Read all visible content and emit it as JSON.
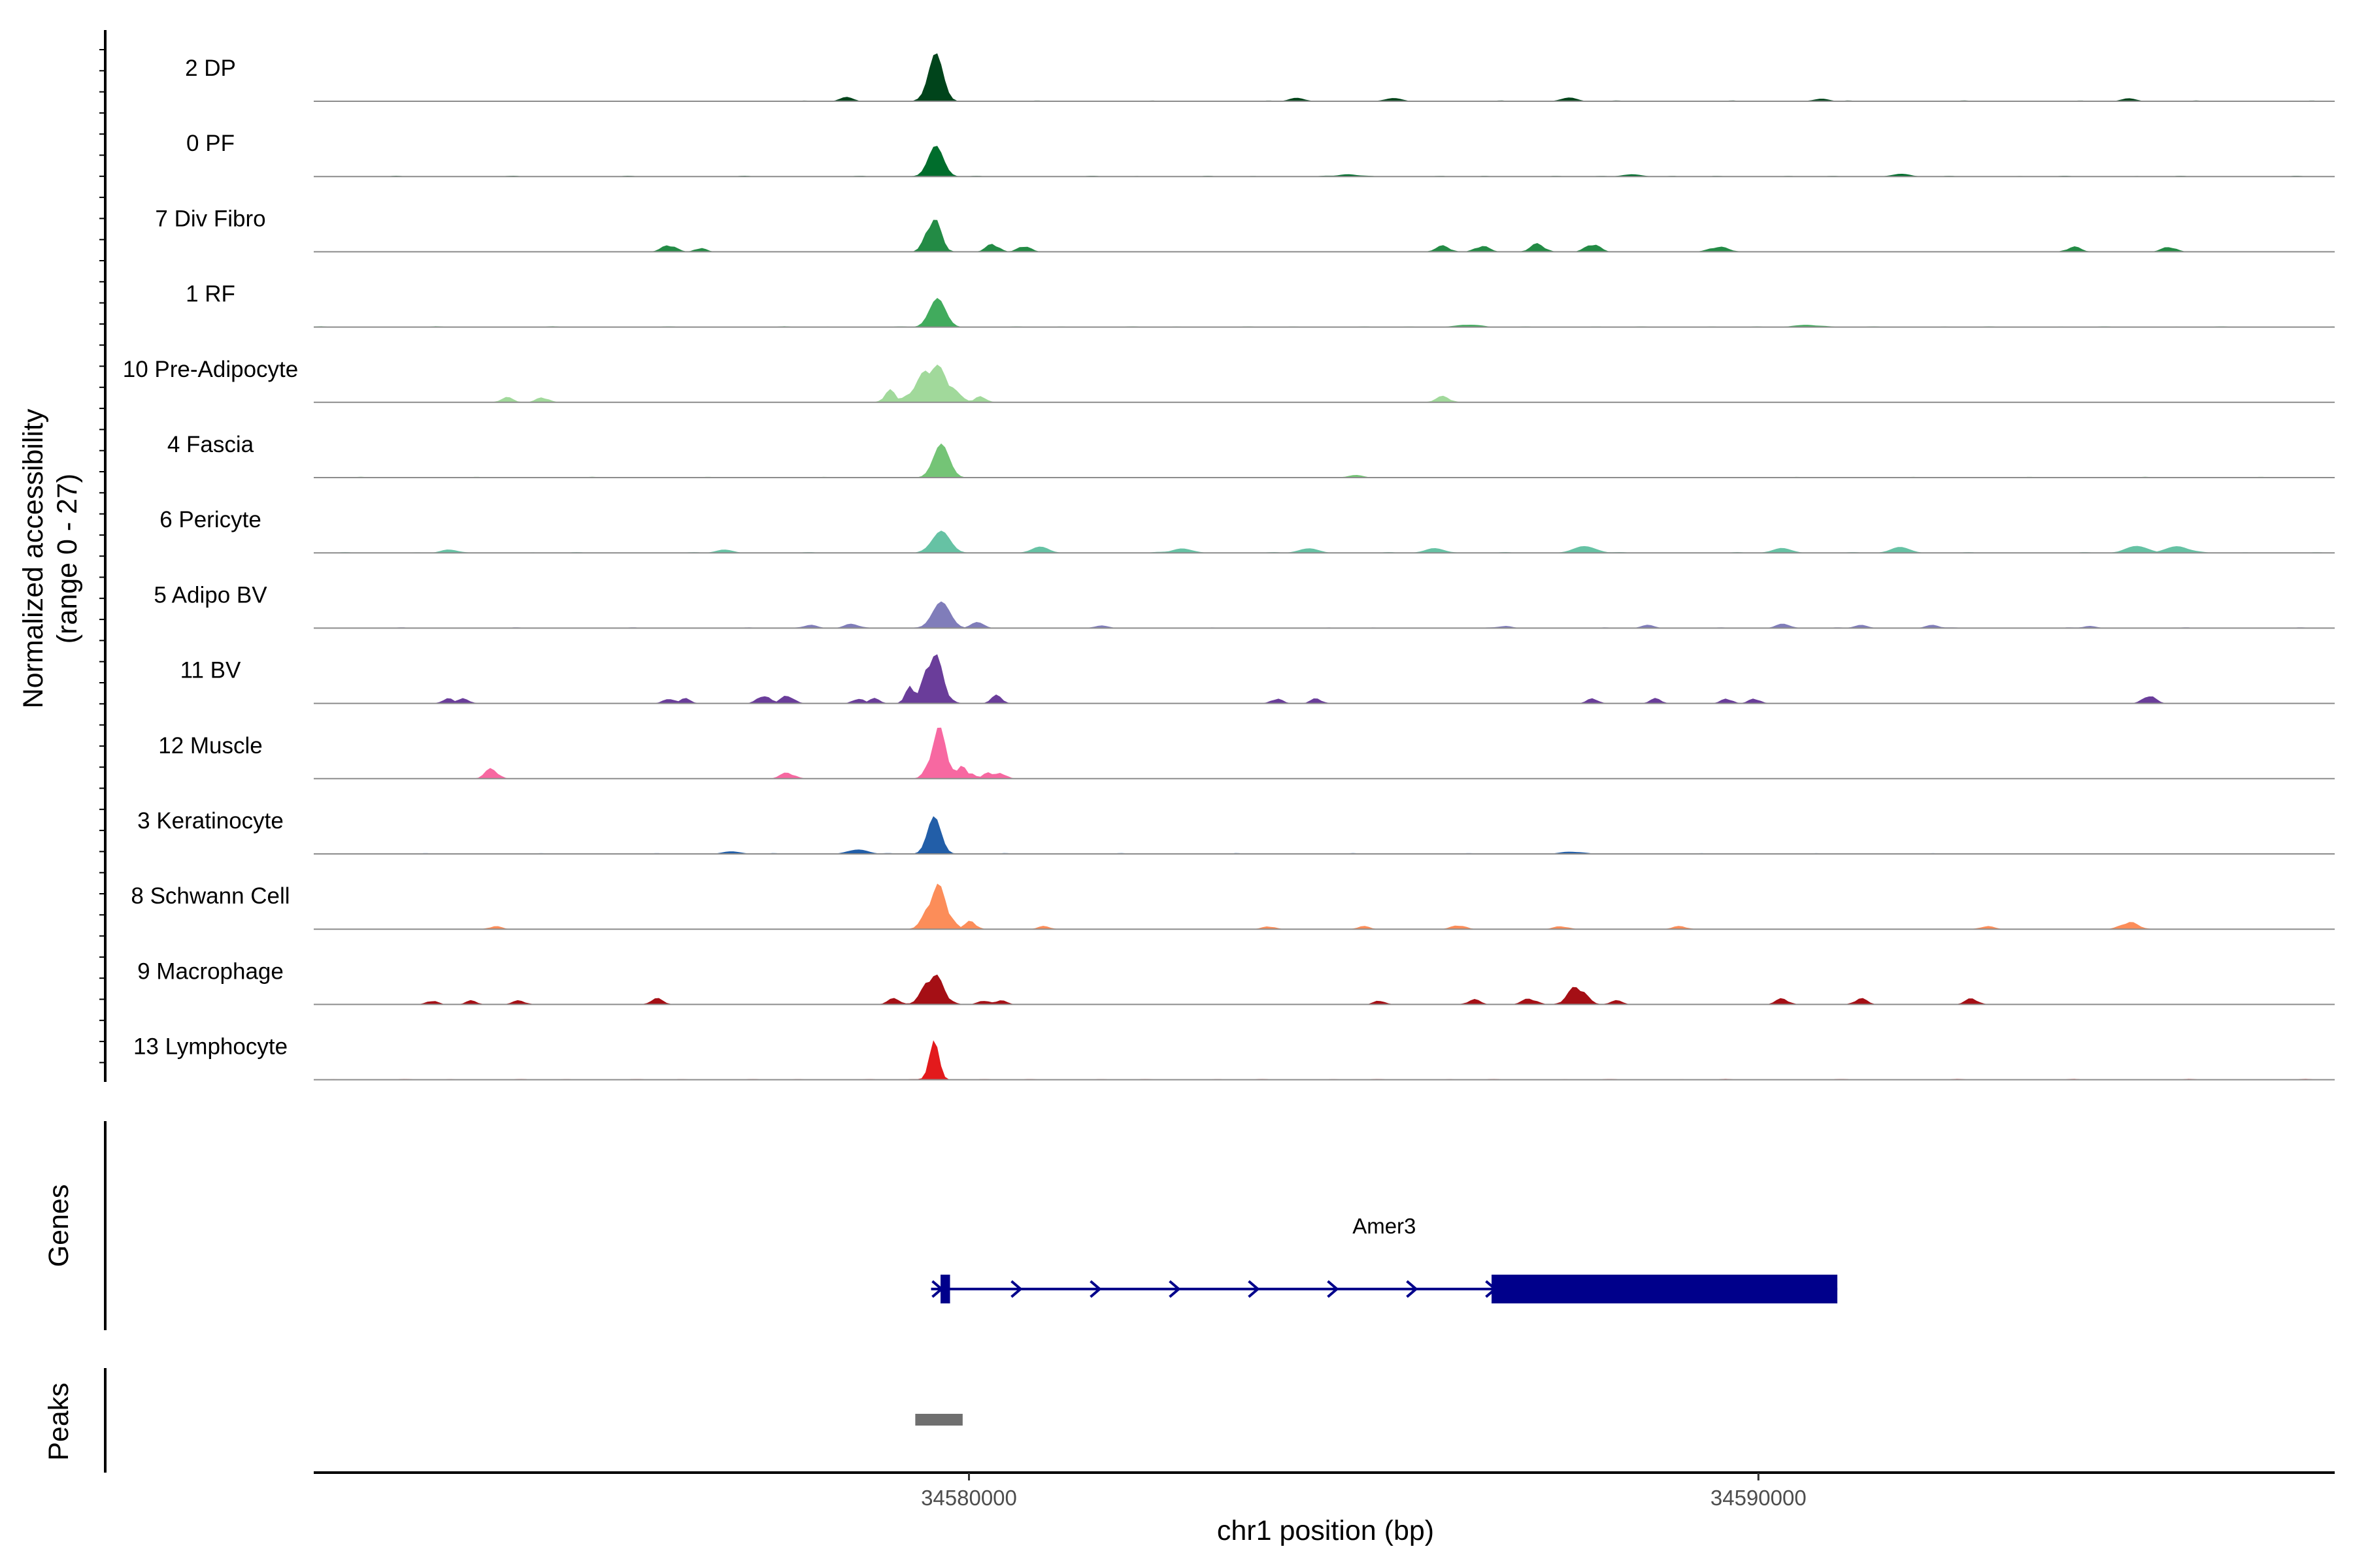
{
  "chart_data": {
    "type": "area",
    "y_axis_title": [
      "Normalized accessibility",
      "(range 0 - 27)"
    ],
    "y_range": [
      0,
      27
    ],
    "x_axis_title": "chr1 position (bp)",
    "x_range": [
      34571700,
      34597300
    ],
    "x_ticks": [
      {
        "value": 34580000,
        "label": "34580000"
      },
      {
        "value": 34590000,
        "label": "34590000"
      }
    ],
    "series": [
      {
        "name": "2 DP",
        "color": "#00441b",
        "fill_shape": "smooth",
        "peaks": [
          {
            "pos": 34579580,
            "width": 90,
            "height": 22
          },
          {
            "pos": 34578450,
            "width": 80,
            "height": 2
          },
          {
            "pos": 34584150,
            "width": 90,
            "height": 1.6
          },
          {
            "pos": 34585400,
            "width": 90,
            "height": 1.4
          },
          {
            "pos": 34587600,
            "width": 100,
            "height": 1.6
          },
          {
            "pos": 34590800,
            "width": 90,
            "height": 1.2
          },
          {
            "pos": 34594700,
            "width": 90,
            "height": 1.2
          }
        ]
      },
      {
        "name": "0 PF",
        "color": "#006d2c",
        "fill_shape": "smooth",
        "peaks": [
          {
            "pos": 34579580,
            "width": 95,
            "height": 14
          },
          {
            "pos": 34584800,
            "width": 120,
            "height": 1
          },
          {
            "pos": 34588400,
            "width": 120,
            "height": 1
          },
          {
            "pos": 34591800,
            "width": 120,
            "height": 1
          }
        ]
      },
      {
        "name": "7 Div Fibro",
        "color": "#238b45",
        "fill_shape": "jagged",
        "peaks": [
          {
            "pos": 34579550,
            "width": 90,
            "height": 17
          },
          {
            "pos": 34580300,
            "width": 80,
            "height": 4
          },
          {
            "pos": 34580700,
            "width": 80,
            "height": 3
          },
          {
            "pos": 34576200,
            "width": 90,
            "height": 3.5
          },
          {
            "pos": 34576600,
            "width": 70,
            "height": 2
          },
          {
            "pos": 34586000,
            "width": 90,
            "height": 3
          },
          {
            "pos": 34586500,
            "width": 90,
            "height": 3
          },
          {
            "pos": 34587200,
            "width": 90,
            "height": 4
          },
          {
            "pos": 34587900,
            "width": 90,
            "height": 4
          },
          {
            "pos": 34589500,
            "width": 120,
            "height": 2.5
          },
          {
            "pos": 34594000,
            "width": 90,
            "height": 2.5
          },
          {
            "pos": 34595200,
            "width": 90,
            "height": 2.5
          }
        ]
      },
      {
        "name": "1 RF",
        "color": "#41ab5d",
        "fill_shape": "smooth",
        "peaks": [
          {
            "pos": 34579600,
            "width": 100,
            "height": 13
          },
          {
            "pos": 34586300,
            "width": 150,
            "height": 1
          },
          {
            "pos": 34590600,
            "width": 150,
            "height": 1
          }
        ]
      },
      {
        "name": "10 Pre-Adipocyte",
        "color": "#a1d99b",
        "fill_shape": "jagged",
        "peaks": [
          {
            "pos": 34579550,
            "width": 190,
            "height": 18
          },
          {
            "pos": 34579000,
            "width": 70,
            "height": 6
          },
          {
            "pos": 34580150,
            "width": 70,
            "height": 3
          },
          {
            "pos": 34574150,
            "width": 80,
            "height": 2.5
          },
          {
            "pos": 34574600,
            "width": 80,
            "height": 2.5
          },
          {
            "pos": 34586000,
            "width": 90,
            "height": 3
          }
        ]
      },
      {
        "name": "4 Fascia",
        "color": "#74c476",
        "fill_shape": "smooth",
        "peaks": [
          {
            "pos": 34579650,
            "width": 100,
            "height": 15
          },
          {
            "pos": 34584900,
            "width": 90,
            "height": 1.2
          }
        ]
      },
      {
        "name": "6 Pericyte",
        "color": "#66c2a4",
        "fill_shape": "smooth",
        "peaks": [
          {
            "pos": 34579650,
            "width": 110,
            "height": 10
          },
          {
            "pos": 34580900,
            "width": 110,
            "height": 2.5
          },
          {
            "pos": 34582700,
            "width": 120,
            "height": 2
          },
          {
            "pos": 34584300,
            "width": 120,
            "height": 2
          },
          {
            "pos": 34585900,
            "width": 120,
            "height": 2
          },
          {
            "pos": 34587800,
            "width": 140,
            "height": 3
          },
          {
            "pos": 34590300,
            "width": 120,
            "height": 2
          },
          {
            "pos": 34591800,
            "width": 120,
            "height": 2.5
          },
          {
            "pos": 34594800,
            "width": 140,
            "height": 3
          },
          {
            "pos": 34595300,
            "width": 140,
            "height": 3
          },
          {
            "pos": 34573400,
            "width": 90,
            "height": 1.5
          },
          {
            "pos": 34576900,
            "width": 100,
            "height": 1.5
          }
        ]
      },
      {
        "name": "5 Adipo BV",
        "color": "#807dba",
        "fill_shape": "smooth",
        "peaks": [
          {
            "pos": 34579650,
            "width": 110,
            "height": 12
          },
          {
            "pos": 34580100,
            "width": 80,
            "height": 2.5
          },
          {
            "pos": 34578500,
            "width": 80,
            "height": 2
          },
          {
            "pos": 34578000,
            "width": 80,
            "height": 1.5
          },
          {
            "pos": 34581700,
            "width": 80,
            "height": 1
          },
          {
            "pos": 34586800,
            "width": 80,
            "height": 1
          },
          {
            "pos": 34588600,
            "width": 80,
            "height": 1.5
          },
          {
            "pos": 34590300,
            "width": 80,
            "height": 2
          },
          {
            "pos": 34591300,
            "width": 80,
            "height": 1.5
          },
          {
            "pos": 34592200,
            "width": 80,
            "height": 1.5
          },
          {
            "pos": 34594200,
            "width": 80,
            "height": 1
          }
        ]
      },
      {
        "name": "11 BV",
        "color": "#6a3d9a",
        "fill_shape": "jagged",
        "peaks": [
          {
            "pos": 34579550,
            "width": 110,
            "height": 25
          },
          {
            "pos": 34579250,
            "width": 60,
            "height": 8
          },
          {
            "pos": 34580350,
            "width": 70,
            "height": 4
          },
          {
            "pos": 34573400,
            "width": 70,
            "height": 2.5
          },
          {
            "pos": 34573600,
            "width": 70,
            "height": 2.5
          },
          {
            "pos": 34576200,
            "width": 70,
            "height": 2.5
          },
          {
            "pos": 34576400,
            "width": 70,
            "height": 2.5
          },
          {
            "pos": 34577400,
            "width": 80,
            "height": 4
          },
          {
            "pos": 34577700,
            "width": 80,
            "height": 4
          },
          {
            "pos": 34578600,
            "width": 70,
            "height": 2.5
          },
          {
            "pos": 34578800,
            "width": 70,
            "height": 2.5
          },
          {
            "pos": 34583900,
            "width": 70,
            "height": 2.5
          },
          {
            "pos": 34584400,
            "width": 70,
            "height": 2.5
          },
          {
            "pos": 34587900,
            "width": 70,
            "height": 2.5
          },
          {
            "pos": 34588700,
            "width": 70,
            "height": 2.5
          },
          {
            "pos": 34589600,
            "width": 70,
            "height": 2.5
          },
          {
            "pos": 34589950,
            "width": 70,
            "height": 2.5
          },
          {
            "pos": 34594950,
            "width": 80,
            "height": 4
          }
        ]
      },
      {
        "name": "12 Muscle",
        "color": "#f768a1",
        "fill_shape": "jagged",
        "peaks": [
          {
            "pos": 34579620,
            "width": 100,
            "height": 24
          },
          {
            "pos": 34579900,
            "width": 60,
            "height": 7
          },
          {
            "pos": 34580000,
            "width": 70,
            "height": 3
          },
          {
            "pos": 34580250,
            "width": 70,
            "height": 3
          },
          {
            "pos": 34580400,
            "width": 70,
            "height": 3
          },
          {
            "pos": 34573950,
            "width": 80,
            "height": 5
          },
          {
            "pos": 34577700,
            "width": 90,
            "height": 3
          }
        ]
      },
      {
        "name": "3 Keratinocyte",
        "color": "#225ea8",
        "fill_shape": "smooth",
        "peaks": [
          {
            "pos": 34579560,
            "width": 85,
            "height": 17
          },
          {
            "pos": 34578600,
            "width": 120,
            "height": 2
          },
          {
            "pos": 34577000,
            "width": 120,
            "height": 1
          },
          {
            "pos": 34587600,
            "width": 120,
            "height": 1
          }
        ]
      },
      {
        "name": "8 Schwann Cell",
        "color": "#fc8d59",
        "fill_shape": "jagged",
        "peaks": [
          {
            "pos": 34579600,
            "width": 120,
            "height": 21
          },
          {
            "pos": 34580020,
            "width": 70,
            "height": 4
          },
          {
            "pos": 34574000,
            "width": 80,
            "height": 1.5
          },
          {
            "pos": 34580950,
            "width": 80,
            "height": 1.5
          },
          {
            "pos": 34583800,
            "width": 80,
            "height": 1.5
          },
          {
            "pos": 34585000,
            "width": 80,
            "height": 1.5
          },
          {
            "pos": 34586200,
            "width": 90,
            "height": 2
          },
          {
            "pos": 34587500,
            "width": 90,
            "height": 1.5
          },
          {
            "pos": 34589000,
            "width": 90,
            "height": 1.5
          },
          {
            "pos": 34592900,
            "width": 90,
            "height": 1.5
          },
          {
            "pos": 34594700,
            "width": 110,
            "height": 3.5
          }
        ]
      },
      {
        "name": "9 Macrophage",
        "color": "#a50f15",
        "fill_shape": "jagged",
        "peaks": [
          {
            "pos": 34579550,
            "width": 120,
            "height": 15
          },
          {
            "pos": 34579050,
            "width": 80,
            "height": 3
          },
          {
            "pos": 34580200,
            "width": 80,
            "height": 2
          },
          {
            "pos": 34580400,
            "width": 80,
            "height": 2
          },
          {
            "pos": 34573200,
            "width": 70,
            "height": 2
          },
          {
            "pos": 34573700,
            "width": 70,
            "height": 2
          },
          {
            "pos": 34574300,
            "width": 80,
            "height": 2
          },
          {
            "pos": 34576050,
            "width": 80,
            "height": 3
          },
          {
            "pos": 34585200,
            "width": 70,
            "height": 2
          },
          {
            "pos": 34586400,
            "width": 80,
            "height": 2.5
          },
          {
            "pos": 34587100,
            "width": 90,
            "height": 3
          },
          {
            "pos": 34587700,
            "width": 110,
            "height": 9
          },
          {
            "pos": 34588200,
            "width": 80,
            "height": 2
          },
          {
            "pos": 34590300,
            "width": 80,
            "height": 3
          },
          {
            "pos": 34591300,
            "width": 80,
            "height": 3
          },
          {
            "pos": 34592700,
            "width": 80,
            "height": 3
          }
        ]
      },
      {
        "name": "13 Lymphocyte",
        "color": "#e31a1c",
        "fill_shape": "smooth",
        "peaks": [
          {
            "pos": 34579560,
            "width": 60,
            "height": 18
          }
        ]
      }
    ],
    "genes_track_title": "Genes",
    "gene": {
      "name": "Amer3",
      "color": "#00008b",
      "strand": "+",
      "start": 34579520,
      "end": 34591000,
      "exons": [
        {
          "start": 34579640,
          "end": 34579760
        },
        {
          "start": 34586620,
          "end": 34591000
        }
      ]
    },
    "peaks_track_title": "Peaks",
    "peak_regions": [
      {
        "start": 34579320,
        "end": 34579920,
        "color": "#6f6f6f"
      }
    ]
  }
}
